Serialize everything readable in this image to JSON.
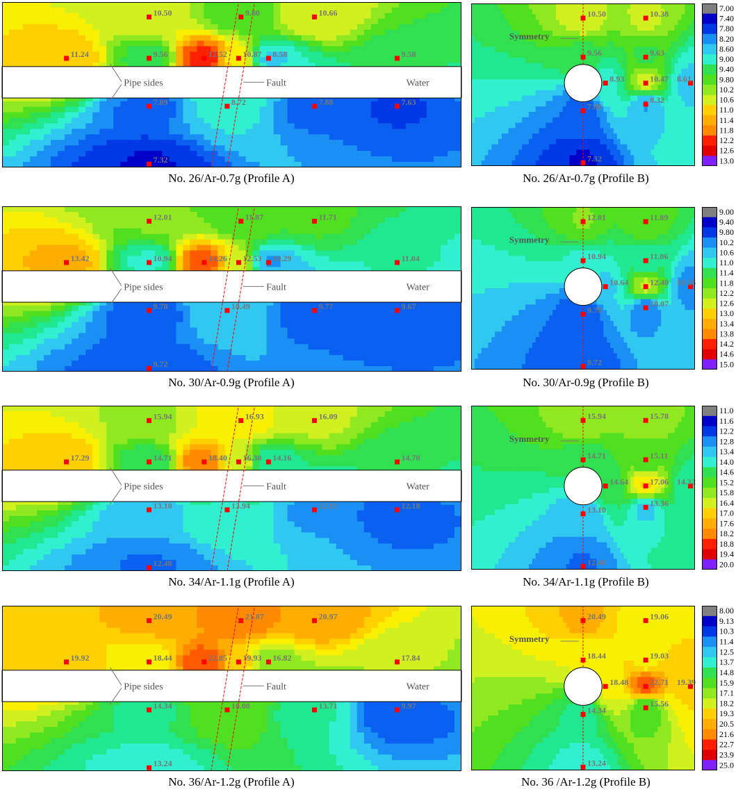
{
  "colors": {
    "contour": [
      "#0000c8",
      "#0038e6",
      "#0a60f0",
      "#1a90f5",
      "#30c8f0",
      "#30f0d0",
      "#20e890",
      "#30e050",
      "#50e020",
      "#90e820",
      "#d0f020",
      "#f8f000",
      "#ffd000",
      "#ffae00",
      "#ff8a00",
      "#ff5a00",
      "#ff2000",
      "#e00000"
    ],
    "sentinel_low": "#808080",
    "sentinel_high": "#8020ff",
    "sensor": "#ff0000",
    "label": "#777777",
    "fault": "#ff0000"
  },
  "chart_data": [
    {
      "type": "heatmap",
      "caption": "No. 26/Ar-0.7g  (Profile A)",
      "annotations": {
        "pipe_sides": "Pipe sides",
        "fault": "Fault",
        "water": "Water"
      },
      "sensors": [
        {
          "label": "10.50",
          "x": 0.32,
          "y": 0.09,
          "value": 10.5
        },
        {
          "label": "9.80",
          "x": 0.52,
          "y": 0.09,
          "value": 9.8
        },
        {
          "label": "10.66",
          "x": 0.68,
          "y": 0.09,
          "value": 10.66
        },
        {
          "label": "11.24",
          "x": 0.14,
          "y": 0.34,
          "value": 11.24
        },
        {
          "label": "9.56",
          "x": 0.32,
          "y": 0.34,
          "value": 9.56
        },
        {
          "label": "12.52",
          "x": 0.44,
          "y": 0.34,
          "value": 12.52
        },
        {
          "label": "10.87",
          "x": 0.515,
          "y": 0.34,
          "value": 10.87
        },
        {
          "label": "8.58",
          "x": 0.58,
          "y": 0.34,
          "value": 8.58
        },
        {
          "label": "9.58",
          "x": 0.86,
          "y": 0.34,
          "value": 9.58
        },
        {
          "label": "7.89",
          "x": 0.32,
          "y": 0.63,
          "value": 7.89
        },
        {
          "label": "8.72",
          "x": 0.49,
          "y": 0.63,
          "value": 8.72
        },
        {
          "label": "7.88",
          "x": 0.68,
          "y": 0.63,
          "value": 7.88
        },
        {
          "label": "7.63",
          "x": 0.86,
          "y": 0.63,
          "value": 7.63
        },
        {
          "label": "7.32",
          "x": 0.32,
          "y": 0.98,
          "value": 7.32
        }
      ]
    },
    {
      "type": "heatmap",
      "caption": "No. 26/Ar-0.7g  (Profile B)",
      "annotations": {
        "symmetry": "Symmetry"
      },
      "sensors": [
        {
          "label": "10.50",
          "x": 0.5,
          "y": 0.09,
          "value": 10.5
        },
        {
          "label": "10.38",
          "x": 0.78,
          "y": 0.09,
          "value": 10.38
        },
        {
          "label": "9.56",
          "x": 0.5,
          "y": 0.33,
          "value": 9.56
        },
        {
          "label": "9.63",
          "x": 0.78,
          "y": 0.33,
          "value": 9.63
        },
        {
          "label": "8.93",
          "x": 0.6,
          "y": 0.49,
          "value": 8.93
        },
        {
          "label": "10.47",
          "x": 0.78,
          "y": 0.49,
          "value": 10.47
        },
        {
          "label": "8.61",
          "x": 0.98,
          "y": 0.49,
          "value": 8.61
        },
        {
          "label": "8.32",
          "x": 0.78,
          "y": 0.62,
          "value": 8.32
        },
        {
          "label": "7.89",
          "x": 0.5,
          "y": 0.66,
          "value": 7.89
        },
        {
          "label": "7.32",
          "x": 0.5,
          "y": 0.98,
          "value": 7.32
        }
      ],
      "colorbar": [
        "7.00",
        "7.40",
        "7.80",
        "8.20",
        "8.60",
        "9.00",
        "9.40",
        "9.80",
        "10.2",
        "10.6",
        "11.0",
        "11.4",
        "11.8",
        "12.2",
        "12.6",
        "13.0"
      ]
    },
    {
      "type": "heatmap",
      "caption": "No. 30/Ar-0.9g  (Profile A)",
      "annotations": {
        "pipe_sides": "Pipe sides",
        "fault": "Fault",
        "water": "Water"
      },
      "sensors": [
        {
          "label": "12.01",
          "x": 0.32,
          "y": 0.09,
          "value": 12.01
        },
        {
          "label": "11.87",
          "x": 0.52,
          "y": 0.09,
          "value": 11.87
        },
        {
          "label": "11.71",
          "x": 0.68,
          "y": 0.09,
          "value": 11.71
        },
        {
          "label": "13.42",
          "x": 0.14,
          "y": 0.34,
          "value": 13.42
        },
        {
          "label": "10.94",
          "x": 0.32,
          "y": 0.34,
          "value": 10.94
        },
        {
          "label": "14.26",
          "x": 0.44,
          "y": 0.34,
          "value": 14.26
        },
        {
          "label": "12.53",
          "x": 0.515,
          "y": 0.34,
          "value": 12.53
        },
        {
          "label": "10.29",
          "x": 0.58,
          "y": 0.34,
          "value": 10.29
        },
        {
          "label": "11.04",
          "x": 0.86,
          "y": 0.34,
          "value": 11.04
        },
        {
          "label": "9.78",
          "x": 0.32,
          "y": 0.63,
          "value": 9.78
        },
        {
          "label": "10.49",
          "x": 0.49,
          "y": 0.63,
          "value": 10.49
        },
        {
          "label": "9.77",
          "x": 0.68,
          "y": 0.63,
          "value": 9.77
        },
        {
          "label": "9.67",
          "x": 0.86,
          "y": 0.63,
          "value": 9.67
        },
        {
          "label": "9.72",
          "x": 0.32,
          "y": 0.98,
          "value": 9.72
        }
      ]
    },
    {
      "type": "heatmap",
      "caption": "No. 30/Ar-0.9g  (Profile B)",
      "annotations": {
        "symmetry": "Symmetry"
      },
      "sensors": [
        {
          "label": "12.01",
          "x": 0.5,
          "y": 0.09,
          "value": 12.01
        },
        {
          "label": "11.89",
          "x": 0.78,
          "y": 0.09,
          "value": 11.89
        },
        {
          "label": "10.94",
          "x": 0.5,
          "y": 0.33,
          "value": 10.94
        },
        {
          "label": "11.06",
          "x": 0.78,
          "y": 0.33,
          "value": 11.06
        },
        {
          "label": "10.64",
          "x": 0.6,
          "y": 0.49,
          "value": 10.64
        },
        {
          "label": "12.40",
          "x": 0.78,
          "y": 0.49,
          "value": 12.4
        },
        {
          "label": "10.26",
          "x": 0.98,
          "y": 0.49,
          "value": 10.26
        },
        {
          "label": "10.07",
          "x": 0.78,
          "y": 0.62,
          "value": 10.07
        },
        {
          "label": "9.78",
          "x": 0.5,
          "y": 0.66,
          "value": 9.78
        },
        {
          "label": "9.72",
          "x": 0.5,
          "y": 0.98,
          "value": 9.72
        }
      ],
      "colorbar": [
        "9.00",
        "9.40",
        "9.80",
        "10.2",
        "10.6",
        "11.0",
        "11.4",
        "11.8",
        "12.2",
        "12.6",
        "13.0",
        "13.4",
        "13.8",
        "14.2",
        "14.6",
        "15.0"
      ]
    },
    {
      "type": "heatmap",
      "caption": "No. 34/Ar-1.1g  (Profile A)",
      "annotations": {
        "pipe_sides": "Pipe sides",
        "fault": "Fault",
        "water": "Water"
      },
      "sensors": [
        {
          "label": "15.94",
          "x": 0.32,
          "y": 0.09,
          "value": 15.94
        },
        {
          "label": "16.93",
          "x": 0.52,
          "y": 0.09,
          "value": 16.93
        },
        {
          "label": "16.09",
          "x": 0.68,
          "y": 0.09,
          "value": 16.09
        },
        {
          "label": "17.29",
          "x": 0.14,
          "y": 0.34,
          "value": 17.29
        },
        {
          "label": "14.71",
          "x": 0.32,
          "y": 0.34,
          "value": 14.71
        },
        {
          "label": "18.40",
          "x": 0.44,
          "y": 0.34,
          "value": 18.4
        },
        {
          "label": "16.30",
          "x": 0.515,
          "y": 0.34,
          "value": 16.3
        },
        {
          "label": "14.16",
          "x": 0.58,
          "y": 0.34,
          "value": 14.16
        },
        {
          "label": "14.70",
          "x": 0.86,
          "y": 0.34,
          "value": 14.7
        },
        {
          "label": "13.10",
          "x": 0.32,
          "y": 0.63,
          "value": 13.1
        },
        {
          "label": "13.94",
          "x": 0.49,
          "y": 0.63,
          "value": 13.94
        },
        {
          "label": "12.91",
          "x": 0.68,
          "y": 0.63,
          "value": 12.91
        },
        {
          "label": "12.18",
          "x": 0.86,
          "y": 0.63,
          "value": 12.18
        },
        {
          "label": "12.48",
          "x": 0.32,
          "y": 0.98,
          "value": 12.48
        }
      ]
    },
    {
      "type": "heatmap",
      "caption": "No. 34/Ar-1.1g  (Profile B)",
      "annotations": {
        "symmetry": "Symmetry"
      },
      "sensors": [
        {
          "label": "15.94",
          "x": 0.5,
          "y": 0.09,
          "value": 15.94
        },
        {
          "label": "15.78",
          "x": 0.78,
          "y": 0.09,
          "value": 15.78
        },
        {
          "label": "14.71",
          "x": 0.5,
          "y": 0.33,
          "value": 14.71
        },
        {
          "label": "15.11",
          "x": 0.78,
          "y": 0.33,
          "value": 15.11
        },
        {
          "label": "14.64",
          "x": 0.6,
          "y": 0.49,
          "value": 14.64
        },
        {
          "label": "17.06",
          "x": 0.78,
          "y": 0.49,
          "value": 17.06
        },
        {
          "label": "14.32",
          "x": 0.98,
          "y": 0.49,
          "value": 14.32
        },
        {
          "label": "13.36",
          "x": 0.78,
          "y": 0.62,
          "value": 13.36
        },
        {
          "label": "13.10",
          "x": 0.5,
          "y": 0.66,
          "value": 13.1
        },
        {
          "label": "12.48",
          "x": 0.5,
          "y": 0.98,
          "value": 12.48
        }
      ],
      "colorbar": [
        "11.0",
        "11.6",
        "12.2",
        "12.8",
        "13.4",
        "14.0",
        "14.6",
        "15.2",
        "15.8",
        "16.4",
        "17.0",
        "17.6",
        "18.2",
        "18.8",
        "19.4",
        "20.0"
      ]
    },
    {
      "type": "heatmap",
      "caption": "No. 36/Ar-1.2g  (Profile A)",
      "annotations": {
        "pipe_sides": "Pipe sides",
        "fault": "Fault",
        "water": "Water"
      },
      "sensors": [
        {
          "label": "20.49",
          "x": 0.32,
          "y": 0.09,
          "value": 20.49
        },
        {
          "label": "21.87",
          "x": 0.52,
          "y": 0.09,
          "value": 21.87
        },
        {
          "label": "20.97",
          "x": 0.68,
          "y": 0.09,
          "value": 20.97
        },
        {
          "label": "19.92",
          "x": 0.14,
          "y": 0.34,
          "value": 19.92
        },
        {
          "label": "18.44",
          "x": 0.32,
          "y": 0.34,
          "value": 18.44
        },
        {
          "label": "22.85",
          "x": 0.44,
          "y": 0.34,
          "value": 22.85
        },
        {
          "label": "19.93",
          "x": 0.515,
          "y": 0.34,
          "value": 19.93
        },
        {
          "label": "16.82",
          "x": 0.58,
          "y": 0.34,
          "value": 16.82
        },
        {
          "label": "17.84",
          "x": 0.86,
          "y": 0.34,
          "value": 17.84
        },
        {
          "label": "14.34",
          "x": 0.32,
          "y": 0.63,
          "value": 14.34
        },
        {
          "label": "16.08",
          "x": 0.49,
          "y": 0.63,
          "value": 16.08
        },
        {
          "label": "13.71",
          "x": 0.68,
          "y": 0.63,
          "value": 13.71
        },
        {
          "label": "9.97",
          "x": 0.86,
          "y": 0.63,
          "value": 9.97
        },
        {
          "label": "13.24",
          "x": 0.32,
          "y": 0.98,
          "value": 13.24
        }
      ]
    },
    {
      "type": "heatmap",
      "caption": "No. 36 /Ar-1.2g  (Profile B)",
      "annotations": {
        "symmetry": "Symmetry"
      },
      "sensors": [
        {
          "label": "20.49",
          "x": 0.5,
          "y": 0.09,
          "value": 20.49
        },
        {
          "label": "19.06",
          "x": 0.78,
          "y": 0.09,
          "value": 19.06
        },
        {
          "label": "18.44",
          "x": 0.5,
          "y": 0.33,
          "value": 18.44
        },
        {
          "label": "19.03",
          "x": 0.78,
          "y": 0.33,
          "value": 19.03
        },
        {
          "label": "18.48",
          "x": 0.6,
          "y": 0.49,
          "value": 18.48
        },
        {
          "label": "22.71",
          "x": 0.78,
          "y": 0.49,
          "value": 22.71
        },
        {
          "label": "19.39",
          "x": 0.98,
          "y": 0.49,
          "value": 19.39
        },
        {
          "label": "15.56",
          "x": 0.78,
          "y": 0.62,
          "value": 15.56
        },
        {
          "label": "14.34",
          "x": 0.5,
          "y": 0.66,
          "value": 14.34
        },
        {
          "label": "13.24",
          "x": 0.5,
          "y": 0.98,
          "value": 13.24
        }
      ],
      "colorbar": [
        "8.00",
        "9.13",
        "10.3",
        "11.4",
        "12.5",
        "13.7",
        "14.8",
        "15.9",
        "17.1",
        "18.2",
        "19.3",
        "20.5",
        "21.6",
        "22.7",
        "23.9",
        "25.0"
      ]
    }
  ]
}
